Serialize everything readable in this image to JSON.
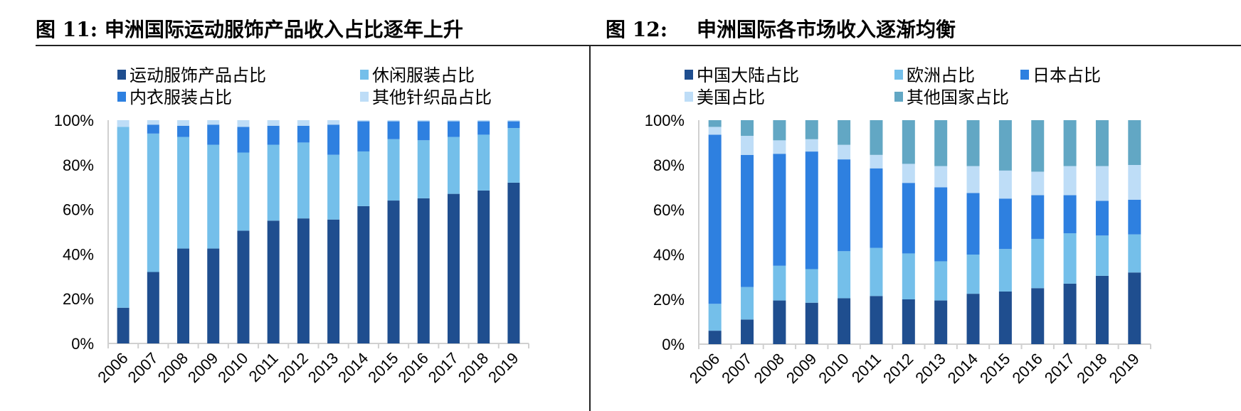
{
  "titles": {
    "fig11_label": "图 11:",
    "fig11_text": "申洲国际运动服饰产品收入占比逐年上升",
    "fig12_label": "图 12:",
    "fig12_text": "申洲国际各市场收入逐渐均衡"
  },
  "chart_data": [
    {
      "type": "bar",
      "stacked": true,
      "title": "申洲国际运动服饰产品收入占比逐年上升",
      "categories": [
        "2006",
        "2007",
        "2008",
        "2009",
        "2010",
        "2011",
        "2012",
        "2013",
        "2014",
        "2015",
        "2016",
        "2017",
        "2018",
        "2019"
      ],
      "ylim": [
        0,
        100
      ],
      "yticks": [
        "0%",
        "20%",
        "40%",
        "60%",
        "80%",
        "100%"
      ],
      "legend_position": "top",
      "grid": false,
      "series": [
        {
          "name": "运动服饰产品占比",
          "color": "#1F4E8F",
          "values": [
            16,
            32,
            42.5,
            42.5,
            50.5,
            55,
            56,
            55.5,
            61.5,
            64,
            65,
            67,
            68.5,
            72
          ]
        },
        {
          "name": "休闲服装占比",
          "color": "#74BFEA",
          "values": [
            81,
            62,
            50,
            46.5,
            35,
            34,
            34,
            29,
            24.5,
            27.5,
            26,
            25.5,
            25,
            24.5
          ]
        },
        {
          "name": "内衣服装占比",
          "color": "#2E80E0",
          "values": [
            0,
            4,
            5,
            9,
            11.5,
            8.5,
            7.5,
            13.5,
            13.5,
            8,
            8.5,
            7,
            6,
            3
          ]
        },
        {
          "name": "其他针织品占比",
          "color": "#BEDDF7",
          "values": [
            3,
            2,
            2.5,
            2,
            3,
            2.5,
            2.5,
            2,
            0.5,
            0.5,
            0.5,
            0.5,
            0.5,
            0.5
          ]
        }
      ]
    },
    {
      "type": "bar",
      "stacked": true,
      "title": "申洲国际各市场收入逐渐均衡",
      "categories": [
        "2006",
        "2007",
        "2008",
        "2009",
        "2010",
        "2011",
        "2012",
        "2013",
        "2014",
        "2015",
        "2016",
        "2017",
        "2018",
        "2019"
      ],
      "ylim": [
        0,
        100
      ],
      "yticks": [
        "0%",
        "20%",
        "40%",
        "60%",
        "80%",
        "100%"
      ],
      "legend_position": "top",
      "grid": false,
      "series": [
        {
          "name": "中国大陆占比",
          "color": "#1F4E8F",
          "values": [
            6,
            11,
            19.5,
            18.5,
            20.5,
            21.5,
            20,
            19.5,
            22.5,
            23.5,
            25,
            27,
            30.5,
            32
          ]
        },
        {
          "name": "欧洲占比",
          "color": "#74BFEA",
          "values": [
            12,
            14.5,
            15.5,
            15,
            21,
            21.5,
            20.5,
            17.5,
            17.5,
            19,
            22,
            22.5,
            18,
            17
          ]
        },
        {
          "name": "日本占比",
          "color": "#2E80E0",
          "values": [
            75.5,
            59,
            50,
            52.5,
            41,
            35.5,
            31.5,
            33,
            27.5,
            22.5,
            19.5,
            17,
            15.5,
            15.5
          ]
        },
        {
          "name": "美国占比",
          "color": "#BEDDF7",
          "values": [
            3.5,
            8.5,
            6,
            5.5,
            6.5,
            6,
            8.5,
            9.5,
            12,
            12.5,
            10.5,
            13,
            15.5,
            15.5
          ]
        },
        {
          "name": "其他国家占比",
          "color": "#62A7C4",
          "values": [
            3,
            7,
            9,
            8.5,
            11,
            15.5,
            19.5,
            20.5,
            20.5,
            22.5,
            23,
            20.5,
            20.5,
            20
          ]
        }
      ]
    }
  ]
}
